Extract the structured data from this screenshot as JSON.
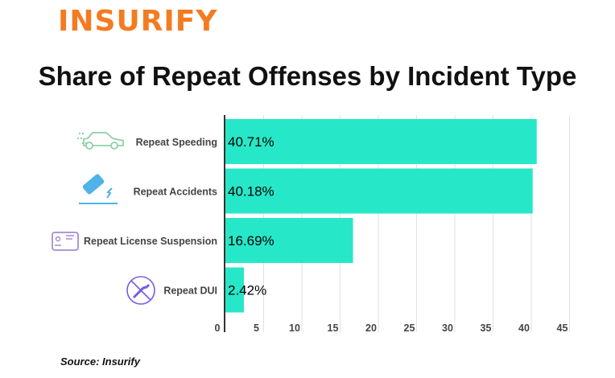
{
  "logo_text": "INSURIFY",
  "source": "Source: Insurify",
  "colors": {
    "bar": "#26e8c8",
    "logo": "#f47b20",
    "speeding_icon": "#8fd1a9",
    "accident_icon": "#4fb3e8",
    "license_icon": "#a98ad0",
    "dui_icon": "#7a5ce0"
  },
  "chart_data": {
    "type": "bar",
    "orientation": "horizontal",
    "title": "Share of Repeat Offenses by Incident Type",
    "categories": [
      "Repeat Speeding",
      "Repeat Accidents",
      "Repeat License Suspension",
      "Repeat DUI"
    ],
    "category_icons": [
      "car-speeding-icon",
      "car-accident-icon",
      "license-card-icon",
      "no-drinking-icon"
    ],
    "values": [
      40.71,
      40.18,
      16.69,
      2.42
    ],
    "data_labels": [
      "40.71%",
      "40.18%",
      "16.69%",
      "2.42%"
    ],
    "xlim": [
      0,
      45
    ],
    "xticks": [
      "0",
      "5",
      "10",
      "15",
      "20",
      "25",
      "30",
      "35",
      "40",
      "45"
    ],
    "grid": true
  }
}
